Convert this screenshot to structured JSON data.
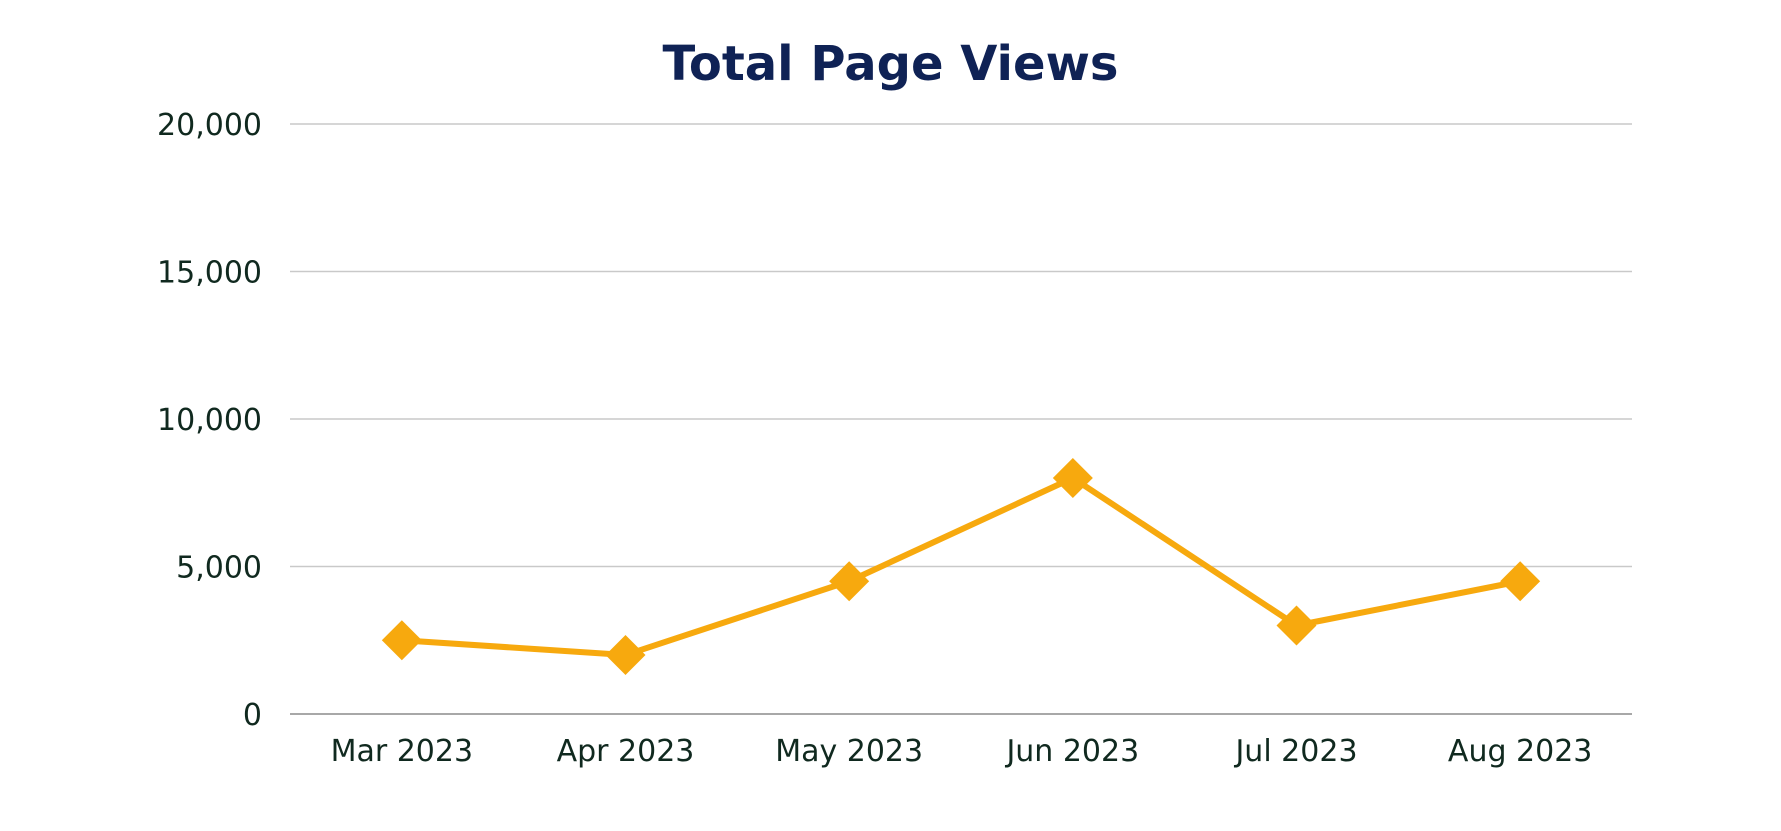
{
  "chart_data": {
    "type": "line",
    "title": "Total Page Views",
    "xlabel": "",
    "ylabel": "",
    "categories": [
      "Mar 2023",
      "Apr 2023",
      "May 2023",
      "Jun 2023",
      "Jul 2023",
      "Aug 2023"
    ],
    "series": [
      {
        "values": [
          2500,
          2000,
          4500,
          8000,
          3000,
          4500
        ]
      }
    ],
    "ylim": [
      0,
      20000
    ],
    "yticks": [
      0,
      5000,
      10000,
      15000,
      20000
    ],
    "ytick_labels": [
      "0",
      "5,000",
      "10,000",
      "15,000",
      "20,000"
    ],
    "grid": true,
    "legend": "none",
    "marker": "diamond",
    "colors": {
      "line": "#F7A90E",
      "title": "#0F2255",
      "text": "#10291F",
      "grid": "#C9C9C9",
      "axis": "#8C8C8C"
    }
  }
}
